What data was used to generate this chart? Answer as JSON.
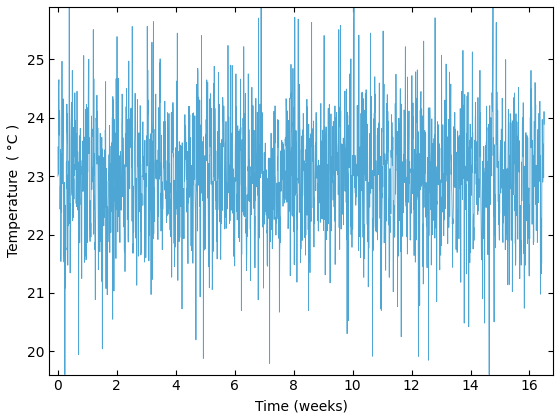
{
  "title": "",
  "xlabel": "Time (weeks)",
  "ylabel": "Temperature  ( °C )",
  "xlim": [
    -0.3,
    16.8
  ],
  "ylim": [
    19.6,
    25.9
  ],
  "xticks": [
    0,
    2,
    4,
    6,
    8,
    10,
    12,
    14,
    16
  ],
  "yticks": [
    20,
    21,
    22,
    23,
    24,
    25
  ],
  "line_color": "#4da6d4",
  "n_points": 2688,
  "weeks": 16.5,
  "base_temp": 23.0,
  "background_color": "#ffffff",
  "linewidth": 0.6
}
